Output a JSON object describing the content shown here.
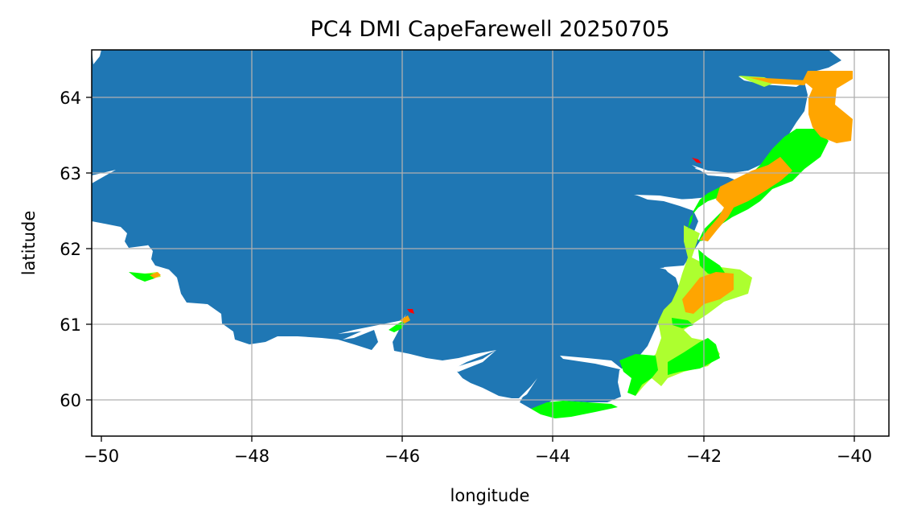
{
  "title": "PC4 DMI CapeFarewell 20250705",
  "xlabel": "longitude",
  "ylabel": "latitude",
  "x_ticks": [
    "−50",
    "−48",
    "−46",
    "−44",
    "−42",
    "−40"
  ],
  "y_ticks": [
    "60",
    "61",
    "62",
    "63",
    "64"
  ],
  "grid": true,
  "colors": {
    "land": "#1f77b4",
    "water": "#ffffff",
    "ice_green": "#00ff00",
    "ice_yellowgreen": "#adff2f",
    "ice_orange": "#ffa500",
    "ice_red": "#ff0000"
  }
}
